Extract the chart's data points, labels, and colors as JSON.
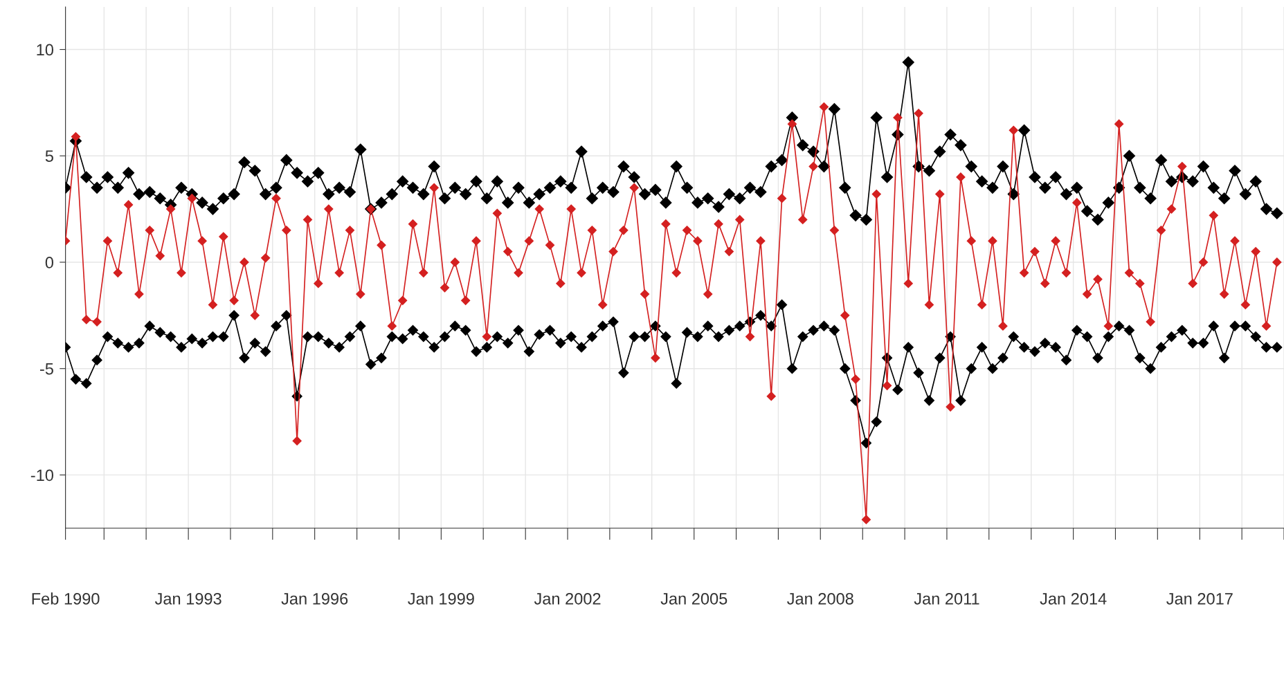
{
  "chart_data": {
    "type": "line",
    "marker": "diamond",
    "line_style": "solid",
    "grid": true,
    "x": [
      "1990-02",
      "1990-05",
      "1990-08",
      "1990-11",
      "1991-02",
      "1991-05",
      "1991-08",
      "1991-11",
      "1992-02",
      "1992-05",
      "1992-08",
      "1992-11",
      "1993-02",
      "1993-05",
      "1993-08",
      "1993-11",
      "1994-02",
      "1994-05",
      "1994-08",
      "1994-11",
      "1995-02",
      "1995-05",
      "1995-08",
      "1995-11",
      "1996-02",
      "1996-05",
      "1996-08",
      "1996-11",
      "1997-02",
      "1997-05",
      "1997-08",
      "1997-11",
      "1998-02",
      "1998-05",
      "1998-08",
      "1998-11",
      "1999-02",
      "1999-05",
      "1999-08",
      "1999-11",
      "2000-02",
      "2000-05",
      "2000-08",
      "2000-11",
      "2001-02",
      "2001-05",
      "2001-08",
      "2001-11",
      "2002-02",
      "2002-05",
      "2002-08",
      "2002-11",
      "2003-02",
      "2003-05",
      "2003-08",
      "2003-11",
      "2004-02",
      "2004-05",
      "2004-08",
      "2004-11",
      "2005-02",
      "2005-05",
      "2005-08",
      "2005-11",
      "2006-02",
      "2006-05",
      "2006-08",
      "2006-11",
      "2007-02",
      "2007-05",
      "2007-08",
      "2007-11",
      "2008-02",
      "2008-05",
      "2008-08",
      "2008-11",
      "2009-02",
      "2009-05",
      "2009-08",
      "2009-11",
      "2010-02",
      "2010-05",
      "2010-08",
      "2010-11",
      "2011-02",
      "2011-05",
      "2011-08",
      "2011-11",
      "2012-02",
      "2012-05",
      "2012-08",
      "2012-11",
      "2013-02",
      "2013-05",
      "2013-08",
      "2013-11",
      "2014-02",
      "2014-05",
      "2014-08",
      "2014-11",
      "2015-02",
      "2015-05",
      "2015-08",
      "2015-11",
      "2016-02",
      "2016-05",
      "2016-08",
      "2016-11",
      "2017-02",
      "2017-05",
      "2017-08",
      "2017-11",
      "2018-02",
      "2018-05",
      "2018-08",
      "2018-11"
    ],
    "series": [
      {
        "color": "#000000",
        "values": [
          3.5,
          5.7,
          4.0,
          3.5,
          4.0,
          3.5,
          4.2,
          3.2,
          3.3,
          3.0,
          2.7,
          3.5,
          3.2,
          2.8,
          2.5,
          3.0,
          3.2,
          4.7,
          4.3,
          3.2,
          3.5,
          4.8,
          4.2,
          3.8,
          4.2,
          3.2,
          3.5,
          3.3,
          5.3,
          2.5,
          2.8,
          3.2,
          3.8,
          3.5,
          3.2,
          4.5,
          3.0,
          3.5,
          3.2,
          3.8,
          3.0,
          3.8,
          2.8,
          3.5,
          2.8,
          3.2,
          3.5,
          3.8,
          3.5,
          5.2,
          3.0,
          3.5,
          3.3,
          4.5,
          4.0,
          3.2,
          3.4,
          2.8,
          4.5,
          3.5,
          2.8,
          3.0,
          2.6,
          3.2,
          3.0,
          3.5,
          3.3,
          4.5,
          4.8,
          6.8,
          5.5,
          5.2,
          4.5,
          7.2,
          3.5,
          2.2,
          2.0,
          6.8,
          4.0,
          6.0,
          9.4,
          4.5,
          4.3,
          5.2,
          6.0,
          5.5,
          4.5,
          3.8,
          3.5,
          4.5,
          3.2,
          6.2,
          4.0,
          3.5,
          4.0,
          3.2,
          3.5,
          2.4,
          2.0,
          2.8,
          3.5,
          5.0,
          3.5,
          3.0,
          4.8,
          3.8,
          4.0,
          3.8,
          4.5,
          3.5,
          3.0,
          4.3,
          3.2,
          3.8,
          2.5,
          2.3
        ]
      },
      {
        "color": "#000000",
        "values": [
          -4.0,
          -5.5,
          -5.7,
          -4.6,
          -3.5,
          -3.8,
          -4.0,
          -3.8,
          -3.0,
          -3.3,
          -3.5,
          -4.0,
          -3.6,
          -3.8,
          -3.5,
          -3.5,
          -2.5,
          -4.5,
          -3.8,
          -4.2,
          -3.0,
          -2.5,
          -6.3,
          -3.5,
          -3.5,
          -3.8,
          -4.0,
          -3.5,
          -3.0,
          -4.8,
          -4.5,
          -3.5,
          -3.6,
          -3.2,
          -3.5,
          -4.0,
          -3.5,
          -3.0,
          -3.2,
          -4.2,
          -4.0,
          -3.5,
          -3.8,
          -3.2,
          -4.2,
          -3.4,
          -3.2,
          -3.8,
          -3.5,
          -4.0,
          -3.5,
          -3.0,
          -2.8,
          -5.2,
          -3.5,
          -3.5,
          -3.0,
          -3.5,
          -5.7,
          -3.3,
          -3.5,
          -3.0,
          -3.5,
          -3.2,
          -3.0,
          -2.8,
          -2.5,
          -3.0,
          -2.0,
          -5.0,
          -3.5,
          -3.2,
          -3.0,
          -3.2,
          -5.0,
          -6.5,
          -8.5,
          -7.5,
          -4.5,
          -6.0,
          -4.0,
          -5.2,
          -6.5,
          -4.5,
          -3.5,
          -6.5,
          -5.0,
          -4.0,
          -5.0,
          -4.5,
          -3.5,
          -4.0,
          -4.2,
          -3.8,
          -4.0,
          -4.6,
          -3.2,
          -3.5,
          -4.5,
          -3.5,
          -3.0,
          -3.2,
          -4.5,
          -5.0,
          -4.0,
          -3.5,
          -3.2,
          -3.8,
          -3.8,
          -3.0,
          -4.5,
          -3.0,
          -3.0,
          -3.5,
          -4.0,
          -4.0
        ]
      },
      {
        "color": "#d42020",
        "values": [
          1.0,
          5.9,
          -2.7,
          -2.8,
          1.0,
          -0.5,
          2.7,
          -1.5,
          1.5,
          0.3,
          2.5,
          -0.5,
          3.0,
          1.0,
          -2.0,
          1.2,
          -1.8,
          0.0,
          -2.5,
          0.2,
          3.0,
          1.5,
          -8.4,
          2.0,
          -1.0,
          2.5,
          -0.5,
          1.5,
          -1.5,
          2.5,
          0.8,
          -3.0,
          -1.8,
          1.8,
          -0.5,
          3.5,
          -1.2,
          0.0,
          -1.8,
          1.0,
          -3.5,
          2.3,
          0.5,
          -0.5,
          1.0,
          2.5,
          0.8,
          -1.0,
          2.5,
          -0.5,
          1.5,
          -2.0,
          0.5,
          1.5,
          3.5,
          -1.5,
          -4.5,
          1.8,
          -0.5,
          1.5,
          1.0,
          -1.5,
          1.8,
          0.5,
          2.0,
          -3.5,
          1.0,
          -6.3,
          3.0,
          6.5,
          2.0,
          4.5,
          7.3,
          1.5,
          -2.5,
          -5.5,
          -12.1,
          3.2,
          -5.8,
          6.8,
          -1.0,
          7.0,
          -2.0,
          3.2,
          -6.8,
          4.0,
          1.0,
          -2.0,
          1.0,
          -3.0,
          6.2,
          -0.5,
          0.5,
          -1.0,
          1.0,
          -0.5,
          2.8,
          -1.5,
          -0.8,
          -3.0,
          6.5,
          -0.5,
          -1.0,
          -2.8,
          1.5,
          2.5,
          4.5,
          -1.0,
          0.0,
          2.2,
          -1.5,
          1.0,
          -2.0,
          0.5,
          -3.0,
          0.0
        ]
      }
    ],
    "xlim": [
      "1990-02",
      "2019-01"
    ],
    "ylim": [
      -12.5,
      12
    ],
    "yticks": [
      -10,
      -5,
      0,
      5,
      10
    ],
    "xticks": [
      {
        "value": "1990-02",
        "label": "Feb 1990"
      },
      {
        "value": "1991-01",
        "label": null
      },
      {
        "value": "1992-01",
        "label": null
      },
      {
        "value": "1993-01",
        "label": "Jan 1993"
      },
      {
        "value": "1994-01",
        "label": null
      },
      {
        "value": "1995-01",
        "label": null
      },
      {
        "value": "1996-01",
        "label": "Jan 1996"
      },
      {
        "value": "1997-01",
        "label": null
      },
      {
        "value": "1998-01",
        "label": null
      },
      {
        "value": "1999-01",
        "label": "Jan 1999"
      },
      {
        "value": "2000-01",
        "label": null
      },
      {
        "value": "2001-01",
        "label": null
      },
      {
        "value": "2002-01",
        "label": "Jan 2002"
      },
      {
        "value": "2003-01",
        "label": null
      },
      {
        "value": "2004-01",
        "label": null
      },
      {
        "value": "2005-01",
        "label": "Jan 2005"
      },
      {
        "value": "2006-01",
        "label": null
      },
      {
        "value": "2007-01",
        "label": null
      },
      {
        "value": "2008-01",
        "label": "Jan 2008"
      },
      {
        "value": "2009-01",
        "label": null
      },
      {
        "value": "2010-01",
        "label": null
      },
      {
        "value": "2011-01",
        "label": "Jan 2011"
      },
      {
        "value": "2012-01",
        "label": null
      },
      {
        "value": "2013-01",
        "label": null
      },
      {
        "value": "2014-01",
        "label": "Jan 2014"
      },
      {
        "value": "2015-01",
        "label": null
      },
      {
        "value": "2016-01",
        "label": null
      },
      {
        "value": "2017-01",
        "label": "Jan 2017"
      },
      {
        "value": "2018-01",
        "label": null
      },
      {
        "value": "2019-01",
        "label": null
      }
    ]
  }
}
